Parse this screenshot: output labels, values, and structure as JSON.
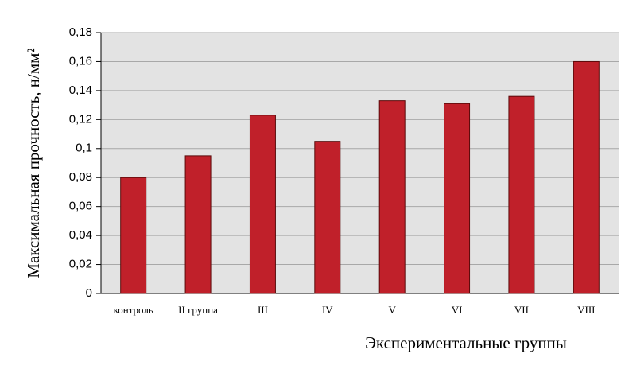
{
  "chart_data": {
    "type": "bar",
    "x_label": "Экспериментальные группы",
    "y_label": "Максимальная прочность, н/мм²",
    "categories": [
      "контроль",
      "II группа",
      "III",
      "IV",
      "V",
      "VI",
      "VII",
      "VIII"
    ],
    "values": [
      0.08,
      0.095,
      0.123,
      0.105,
      0.133,
      0.131,
      0.136,
      0.16
    ],
    "color": "#c0202a",
    "ylim": [
      0,
      0.18
    ],
    "yticks": [
      0,
      {
        "value": 0.02,
        "label": "0,02"
      },
      {
        "value": 0.04,
        "label": "0,04"
      },
      {
        "value": 0.06,
        "label": "0,06"
      },
      {
        "value": 0.08,
        "label": "0,08"
      },
      {
        "value": 0.1,
        "label": "0,1"
      },
      {
        "value": 0.12,
        "label": "0,12"
      },
      {
        "value": 0.14,
        "label": "0,14"
      },
      {
        "value": 0.16,
        "label": "0,16"
      },
      {
        "value": 0.18,
        "label": "0,18"
      }
    ],
    "grid": true
  }
}
